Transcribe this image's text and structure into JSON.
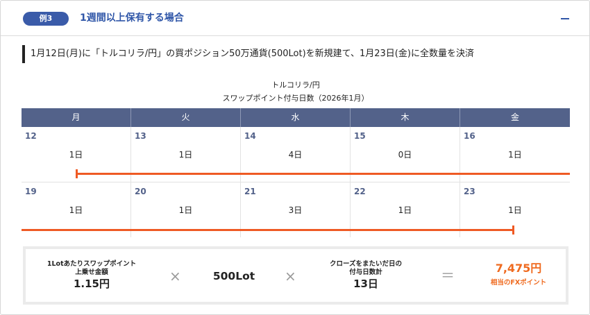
{
  "header": {
    "badge": "例3",
    "title": "1週間以上保有する場合",
    "collapse_symbol": "—"
  },
  "description": "1月12日(月)に「トルコリラ/円」の買ポジション50万通貨(500Lot)を新規建て、1月23日(金)に全数量を決済",
  "calendar": {
    "title_line1": "トルコリラ/円",
    "title_line2": "スワップポイント付与日数（2026年1月）",
    "weekdays": [
      "月",
      "火",
      "水",
      "木",
      "金"
    ],
    "weeks": [
      [
        {
          "date": "12",
          "days": "1日"
        },
        {
          "date": "13",
          "days": "1日"
        },
        {
          "date": "14",
          "days": "4日"
        },
        {
          "date": "15",
          "days": "0日"
        },
        {
          "date": "16",
          "days": "1日"
        }
      ],
      [
        {
          "date": "19",
          "days": "1日"
        },
        {
          "date": "20",
          "days": "1日"
        },
        {
          "date": "21",
          "days": "3日"
        },
        {
          "date": "22",
          "days": "1日"
        },
        {
          "date": "23",
          "days": "1日"
        }
      ]
    ],
    "highlight_color": "#ef5a24",
    "header_color": "#53628a"
  },
  "formula": {
    "swap_label_line1": "1Lotあたりスワップポイント",
    "swap_label_line2": "上乗せ金額",
    "swap_value": "1.15円",
    "times1": "×",
    "lots": "500Lot",
    "times2": "×",
    "days_label_line1": "クローズをまたいだ日の",
    "days_label_line2": "付与日数計",
    "days_value": "13日",
    "equals": "＝",
    "result": "7,475円",
    "result_label": "相当のFXポイント",
    "result_color": "#ef6a1f"
  }
}
